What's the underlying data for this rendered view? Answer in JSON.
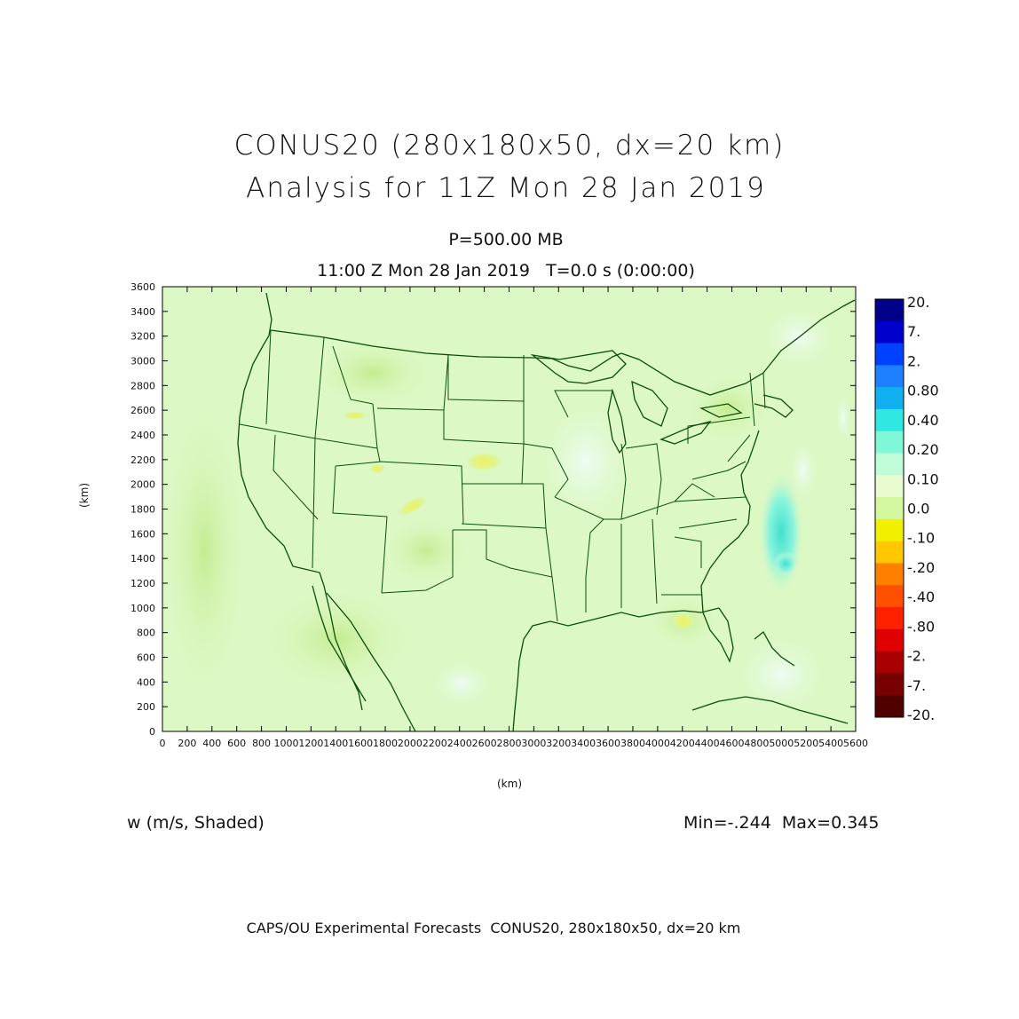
{
  "title_line1": "CONUS20 (280x180x50, dx=20 km)",
  "title_line2": "Analysis for 11Z Mon 28 Jan 2019",
  "level_label": "P=500.00 MB",
  "time_label": "11:00 Z Mon 28 Jan 2019   T=0.0 s (0:00:00)",
  "field_label": "w (m/s, Shaded)",
  "minmax_label": "Min=-.244  Max=0.345",
  "credit_label": "CAPS/OU Experimental Forecasts  CONUS20, 280x180x50, dx=20 km",
  "x_axis": {
    "unit": "(km)",
    "range": [
      0,
      5600
    ],
    "ticks": [
      "0",
      "200",
      "400",
      "600",
      "800",
      "1000",
      "1200",
      "1400",
      "1600",
      "1800",
      "2000",
      "2200",
      "2400",
      "2600",
      "2800",
      "3000",
      "3200",
      "3400",
      "3600",
      "3800",
      "4000",
      "4200",
      "4400",
      "4600",
      "4800",
      "5000",
      "5200",
      "5400",
      "5600"
    ]
  },
  "y_axis": {
    "unit": "(km)",
    "range": [
      0,
      3600
    ],
    "ticks": [
      "0",
      "200",
      "400",
      "600",
      "800",
      "1000",
      "1200",
      "1400",
      "1600",
      "1800",
      "2000",
      "2200",
      "2400",
      "2600",
      "2800",
      "3000",
      "3200",
      "3400",
      "3600"
    ]
  },
  "colorbar": {
    "labels": [
      "20.",
      "7.",
      "2.",
      "0.80",
      "0.40",
      "0.20",
      "0.10",
      "0.0",
      "-.10",
      "-.20",
      "-.40",
      "-.80",
      "-2.",
      "-7.",
      "-20."
    ],
    "colors": [
      "#00008b",
      "#0000cd",
      "#0040ff",
      "#1e7fff",
      "#10b0f0",
      "#30e8e0",
      "#80f8d8",
      "#c0fcd8",
      "#e8fcd0",
      "#d4f8a0",
      "#f0f000",
      "#ffc800",
      "#ff8000",
      "#ff5000",
      "#ff2000",
      "#e00000",
      "#a80000",
      "#780000",
      "#500000"
    ]
  },
  "map": {
    "background_color": "#dcf8c4",
    "boundary_color": "#0b4d0b",
    "features": [
      {
        "value": -0.12,
        "kind": "negative shading"
      },
      {
        "value": 0.2,
        "kind": "positive shading"
      },
      {
        "value": -0.2,
        "kind": "negative maximum"
      }
    ]
  },
  "stats": {
    "min": -0.244,
    "max": 0.345
  }
}
